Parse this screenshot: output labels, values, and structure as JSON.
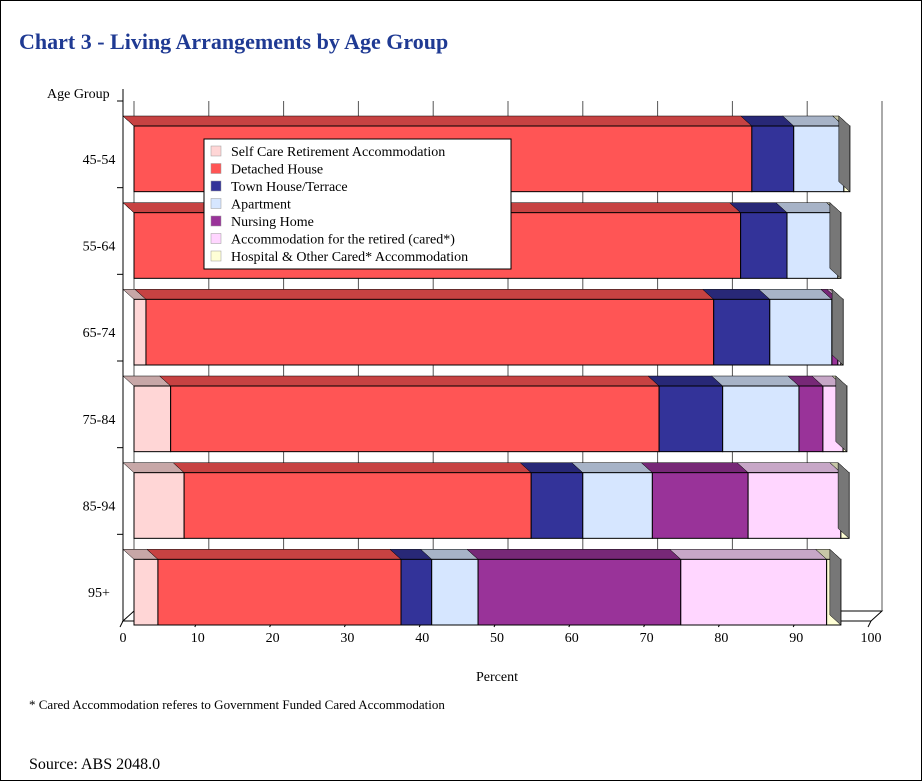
{
  "chart_data": {
    "type": "stacked_hbar",
    "title": "Chart 3 - Living Arrangements by Age Group",
    "ylabel": "Age Group",
    "xlabel": "Percent",
    "note": "* Cared Accommodation referes to Government Funded Cared Accommodation",
    "source": "Source: ABS 2048.0",
    "categories": [
      "45-54",
      "55-64",
      "65-74",
      "75-84",
      "85-94",
      "95+"
    ],
    "series": [
      {
        "name": "Self Care Retirement Accommodation",
        "color": "#ffd6d6",
        "values": [
          0,
          0,
          1.6,
          4.9,
          6.7,
          3.2
        ]
      },
      {
        "name": "Detached House",
        "color": "#ff5555",
        "values": [
          82.6,
          81.1,
          75.9,
          65.3,
          46.4,
          32.5
        ]
      },
      {
        "name": "Town House/Terrace",
        "color": "#333399",
        "values": [
          5.6,
          6.2,
          7.5,
          8.5,
          6.9,
          4.1
        ]
      },
      {
        "name": "Apartment",
        "color": "#d6e6ff",
        "values": [
          6.7,
          6.8,
          8.3,
          10.2,
          9.3,
          6.2
        ]
      },
      {
        "name": "Nursing Home",
        "color": "#993399",
        "values": [
          0,
          0,
          0.8,
          3.2,
          12.8,
          27.1
        ]
      },
      {
        "name": "Accommodation for the retired (cared*)",
        "color": "#ffd6ff",
        "values": [
          0,
          0,
          0.4,
          2.7,
          12.4,
          19.5
        ]
      },
      {
        "name": "Hospital & Other Cared* Accommodation",
        "color": "#ffffd6",
        "values": [
          0.8,
          0.4,
          0.3,
          0.5,
          1.1,
          1.9
        ]
      }
    ],
    "xlim": [
      0,
      100
    ],
    "xticks": [
      0,
      10,
      20,
      30,
      40,
      50,
      60,
      70,
      80,
      90,
      100
    ],
    "grid": true,
    "legend": "top-left"
  }
}
